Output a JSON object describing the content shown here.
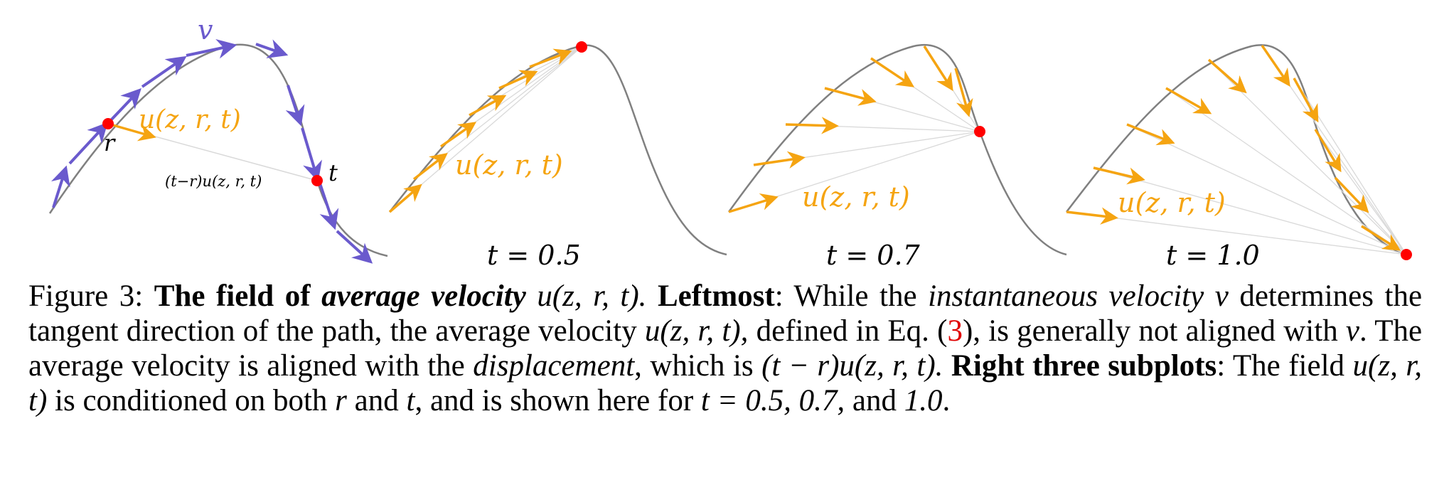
{
  "colors": {
    "path": "#808080",
    "instantaneous": "#6a5acd",
    "average": "#f5a411",
    "point": "#ff0000",
    "guide": "#d9d9d9"
  },
  "panels": {
    "left": {
      "v_label": "v",
      "u_label": "u(z, r, t)",
      "r_label": "r",
      "t_label": "t",
      "displacement_label": "(t−r)u(z, r, t)"
    },
    "p1": {
      "u_label": "u(z, r, t)",
      "t_caption": "t = 0.5"
    },
    "p2": {
      "u_label": "u(z, r, t)",
      "t_caption": "t = 0.7"
    },
    "p3": {
      "u_label": "u(z, r, t)",
      "t_caption": "t = 1.0"
    }
  },
  "caption": {
    "fig_label": "Figure 3:",
    "title_a": "The field of",
    "title_b": "average velocity",
    "title_math": "u(z, r, t).",
    "leftmost": "Leftmost",
    "s1a": ": While the",
    "s1b": "instantaneous velocity",
    "s1c_math": "v",
    "s1d": "determines the tangent direction of the path, the average velocity",
    "s1e_math": "u(z, r, t),",
    "s1f": "defined in Eq. (",
    "s1ref": "3",
    "s1g": "), is generally not aligned with",
    "s1h_math": "v",
    "s1i": ". The average velocity is aligned with the",
    "s1j": "displacement",
    "s1k": ", which is",
    "s1l_math": "(t − r)u(z, r, t).",
    "right3": "Right three subplots",
    "s2a": ": The field",
    "s2b_math": "u(z, r, t)",
    "s2c": "is conditioned on both",
    "s2d_math": "r",
    "s2e": "and",
    "s2f_math": "t",
    "s2g": ", and is shown here for",
    "s2h_math": "t = 0.5, 0.7,",
    "s2i": "and",
    "s2j_math": "1.0",
    "s2k": "."
  }
}
